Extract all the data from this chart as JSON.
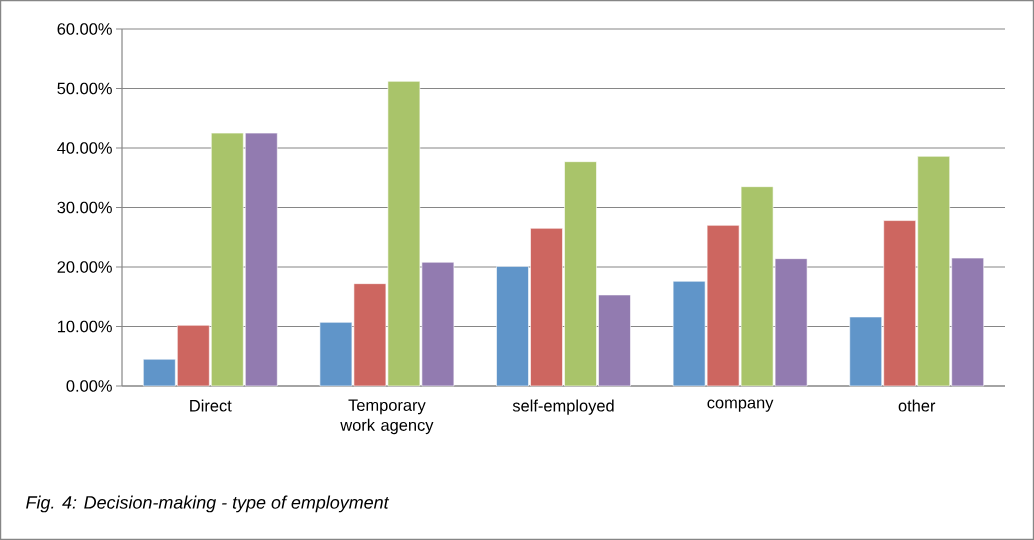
{
  "chart_data": {
    "type": "bar",
    "categories": [
      "Direct",
      "Temporary work agency",
      "self-employed",
      "company",
      "other"
    ],
    "series": [
      {
        "color": "#6095c9",
        "values": [
          4.5,
          10.7,
          20.1,
          17.6,
          11.6
        ]
      },
      {
        "color": "#cd6660",
        "values": [
          10.2,
          17.2,
          26.5,
          27.0,
          27.8
        ]
      },
      {
        "color": "#a9c46a",
        "values": [
          42.5,
          51.2,
          37.7,
          33.5,
          38.6
        ]
      },
      {
        "color": "#927bb0",
        "values": [
          42.5,
          20.8,
          15.3,
          21.4,
          21.5
        ]
      }
    ],
    "ylim": [
      0,
      60
    ],
    "yticks": [
      {
        "value": 0,
        "label": "0.00%"
      },
      {
        "value": 10,
        "label": "10.00%"
      },
      {
        "value": 20,
        "label": "20.00%"
      },
      {
        "value": 30,
        "label": "30.00%"
      },
      {
        "value": 40,
        "label": "40.00%"
      },
      {
        "value": 50,
        "label": "50.00%"
      },
      {
        "value": 60,
        "label": "60.00%"
      }
    ],
    "grid": "y",
    "annotations": [
      "Fig. 4: Decision-making - type of employment"
    ]
  }
}
